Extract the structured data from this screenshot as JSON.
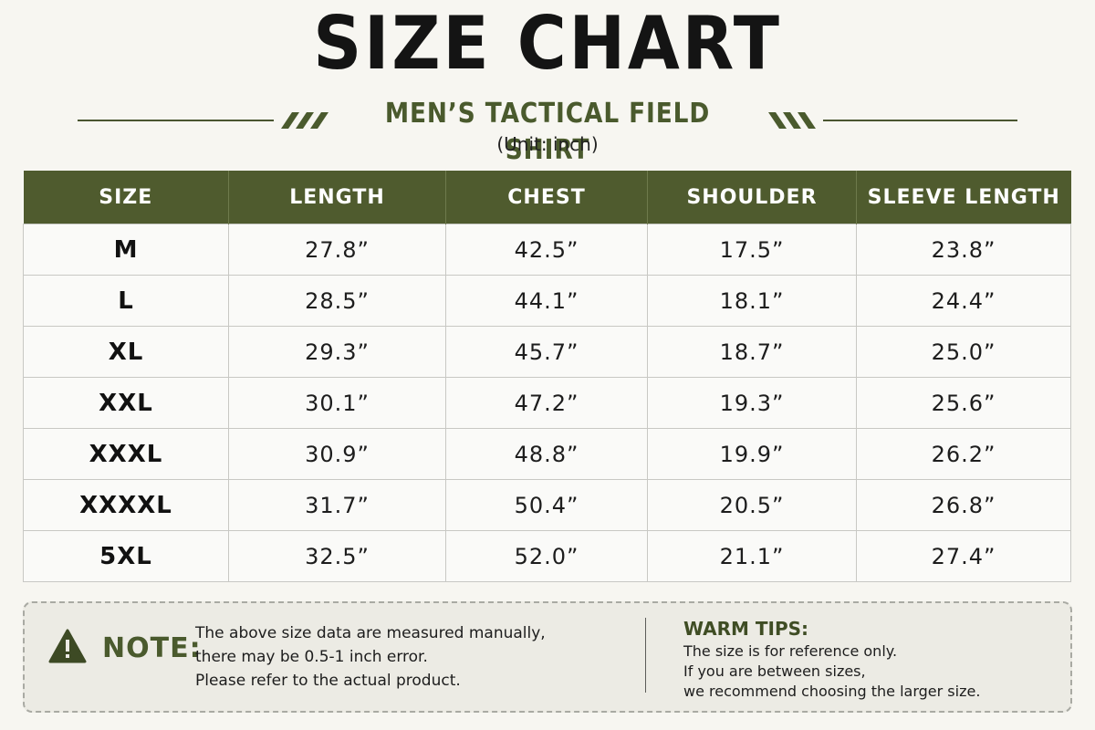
{
  "title": "SIZE CHART",
  "subtitle": "MEN’S TACTICAL FIELD SHIRT",
  "unit": "(Unit: inch)",
  "colors": {
    "header_bg": "#4f5b2e",
    "accent": "#4a5a2d",
    "page_bg": "#f7f6f1"
  },
  "table": {
    "headers": [
      "SIZE",
      "LENGTH",
      "CHEST",
      "SHOULDER",
      "SLEEVE LENGTH"
    ],
    "rows": [
      [
        "M",
        "27.8”",
        "42.5”",
        "17.5”",
        "23.8”"
      ],
      [
        "L",
        "28.5”",
        "44.1”",
        "18.1”",
        "24.4”"
      ],
      [
        "XL",
        "29.3”",
        "45.7”",
        "18.7”",
        "25.0”"
      ],
      [
        "XXL",
        "30.1”",
        "47.2”",
        "19.3”",
        "25.6”"
      ],
      [
        "XXXL",
        "30.9”",
        "48.8”",
        "19.9”",
        "26.2”"
      ],
      [
        "XXXXL",
        "31.7”",
        "50.4”",
        "20.5”",
        "26.8”"
      ],
      [
        "5XL",
        "32.5”",
        "52.0”",
        "21.1”",
        "27.4”"
      ]
    ]
  },
  "note": {
    "icon": "warning-icon",
    "label": "NOTE:",
    "lines": [
      "The above size data are measured manually,",
      "there may be 0.5-1 inch error.",
      "Please refer to the actual product."
    ]
  },
  "tips": {
    "title": "WARM TIPS:",
    "lines": [
      "The size is for reference only.",
      "If you are between sizes,",
      "we recommend choosing the larger size."
    ]
  }
}
